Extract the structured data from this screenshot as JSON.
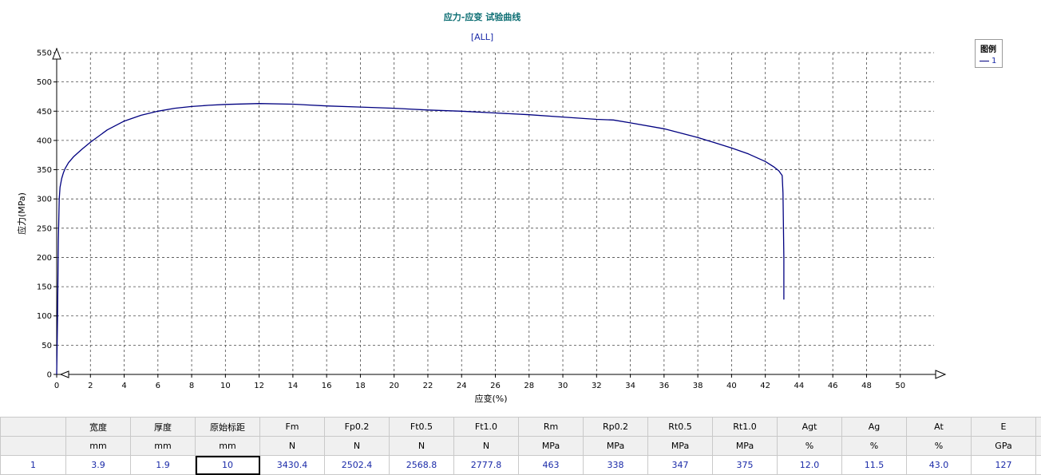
{
  "chart_data": {
    "type": "line",
    "title": "应力-应变 试验曲线",
    "subtitle": "[ALL]",
    "xlabel": "应变(%)",
    "ylabel": "应力(MPa)",
    "xlim": [
      0,
      52
    ],
    "ylim": [
      0,
      550
    ],
    "x_ticks": [
      0,
      2,
      4,
      6,
      8,
      10,
      12,
      14,
      16,
      18,
      20,
      22,
      24,
      26,
      28,
      30,
      32,
      34,
      36,
      38,
      40,
      42,
      44,
      46,
      48,
      50
    ],
    "y_ticks": [
      0,
      50,
      100,
      150,
      200,
      250,
      300,
      350,
      400,
      450,
      500,
      550
    ],
    "grid": true,
    "legend": {
      "title": "图例",
      "position": "top-right"
    },
    "series": [
      {
        "name": "1",
        "color": "#000080",
        "x": [
          0,
          0.05,
          0.1,
          0.15,
          0.2,
          0.3,
          0.4,
          0.5,
          0.7,
          1,
          1.5,
          2,
          3,
          4,
          5,
          6,
          7,
          8,
          9,
          10,
          12,
          14,
          16,
          18,
          20,
          22,
          24,
          26,
          28,
          30,
          32,
          33,
          34,
          36,
          38,
          39,
          40,
          41,
          42,
          42.5,
          42.8,
          43.0,
          43.05,
          43.1,
          43.1
        ],
        "y": [
          0,
          100,
          230,
          300,
          320,
          335,
          345,
          352,
          362,
          372,
          385,
          397,
          418,
          433,
          443,
          450,
          455,
          458,
          460,
          461.5,
          463,
          462,
          459,
          457,
          455,
          452,
          450,
          447,
          444,
          440,
          436,
          435,
          430,
          420,
          405,
          396,
          387,
          377,
          364,
          355,
          348,
          340,
          310,
          200,
          128
        ]
      }
    ]
  },
  "table": {
    "columns": [
      {
        "name": "宽度",
        "unit": "mm",
        "value": "3.9"
      },
      {
        "name": "厚度",
        "unit": "mm",
        "value": "1.9"
      },
      {
        "name": "原始标距",
        "unit": "mm",
        "value": "10"
      },
      {
        "name": "Fm",
        "unit": "N",
        "value": "3430.4"
      },
      {
        "name": "Fp0.2",
        "unit": "N",
        "value": "2502.4"
      },
      {
        "name": "Ft0.5",
        "unit": "N",
        "value": "2568.8"
      },
      {
        "name": "Ft1.0",
        "unit": "N",
        "value": "2777.8"
      },
      {
        "name": "Rm",
        "unit": "MPa",
        "value": "463"
      },
      {
        "name": "Rp0.2",
        "unit": "MPa",
        "value": "338"
      },
      {
        "name": "Rt0.5",
        "unit": "MPa",
        "value": "347"
      },
      {
        "name": "Rt1.0",
        "unit": "MPa",
        "value": "375"
      },
      {
        "name": "Agt",
        "unit": "%",
        "value": "12.0"
      },
      {
        "name": "Ag",
        "unit": "%",
        "value": "11.5"
      },
      {
        "name": "At",
        "unit": "%",
        "value": "43.0"
      },
      {
        "name": "E",
        "unit": "GPa",
        "value": "127"
      }
    ],
    "row_number": "1"
  }
}
